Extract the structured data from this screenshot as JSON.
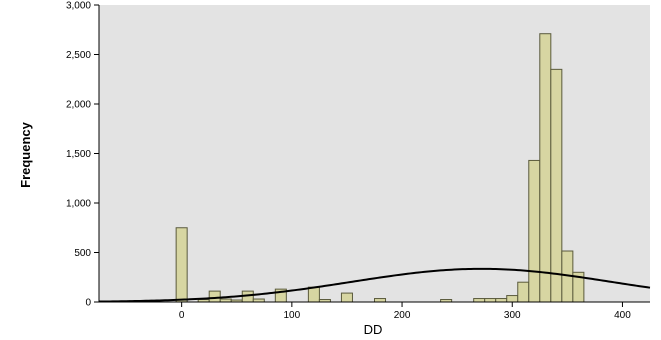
{
  "chart_data": {
    "type": "bar",
    "xlabel": "DD",
    "ylabel": "Frequency",
    "xlim": [
      -75,
      425
    ],
    "ylim": [
      0,
      3000
    ],
    "x_ticks": [
      0,
      100,
      200,
      300,
      400
    ],
    "x_tick_labels": [
      "0",
      "100",
      "200",
      "300",
      "400"
    ],
    "y_ticks": [
      0,
      500,
      1000,
      1500,
      2000,
      2500,
      3000
    ],
    "y_tick_labels": [
      "0",
      "500",
      "1,000",
      "1,500",
      "2,000",
      "2,500",
      "3,000"
    ],
    "grid": false,
    "colors": {
      "plot_background": "#e3e3e3",
      "bar_fill": "#d7d6a2",
      "bar_stroke": "#5a5a3c",
      "curve": "#000000"
    },
    "histogram": {
      "bin_width": 10,
      "bins": [
        {
          "x0": -5,
          "x1": 5,
          "count": 750
        },
        {
          "x0": 15,
          "x1": 25,
          "count": 25
        },
        {
          "x0": 25,
          "x1": 35,
          "count": 110
        },
        {
          "x0": 35,
          "x1": 45,
          "count": 30
        },
        {
          "x0": 45,
          "x1": 55,
          "count": 20
        },
        {
          "x0": 55,
          "x1": 65,
          "count": 110
        },
        {
          "x0": 65,
          "x1": 75,
          "count": 30
        },
        {
          "x0": 85,
          "x1": 95,
          "count": 130
        },
        {
          "x0": 115,
          "x1": 125,
          "count": 150
        },
        {
          "x0": 125,
          "x1": 135,
          "count": 25
        },
        {
          "x0": 145,
          "x1": 155,
          "count": 90
        },
        {
          "x0": 175,
          "x1": 185,
          "count": 35
        },
        {
          "x0": 235,
          "x1": 245,
          "count": 25
        },
        {
          "x0": 265,
          "x1": 275,
          "count": 35
        },
        {
          "x0": 275,
          "x1": 285,
          "count": 35
        },
        {
          "x0": 285,
          "x1": 295,
          "count": 35
        },
        {
          "x0": 295,
          "x1": 305,
          "count": 65
        },
        {
          "x0": 305,
          "x1": 315,
          "count": 200
        },
        {
          "x0": 315,
          "x1": 325,
          "count": 1430
        },
        {
          "x0": 325,
          "x1": 335,
          "count": 2710
        },
        {
          "x0": 335,
          "x1": 345,
          "count": 2350
        },
        {
          "x0": 345,
          "x1": 355,
          "count": 515
        },
        {
          "x0": 355,
          "x1": 365,
          "count": 300
        }
      ]
    },
    "normal_curve": {
      "mean": 272,
      "std": 118,
      "peak": 335
    }
  }
}
